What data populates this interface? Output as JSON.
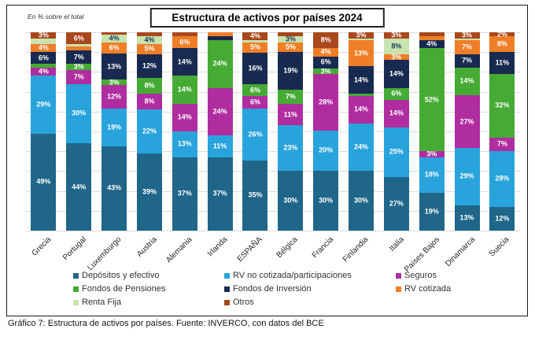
{
  "title": "Estructura de activos por países 2024",
  "note": "En % sobre el total",
  "caption": "Gráfico 7: Estructura de activos por países. Fuente: INVERCO, con datos del BCE",
  "colors": {
    "frame_border": "#1a1a1a",
    "gridline": "#dcdcdc",
    "label_on_dark": "#ffffff",
    "label_on_light": "#17365d"
  },
  "chart_data": {
    "type": "bar",
    "stacked": true,
    "unit": "% sobre el total",
    "ylim": [
      0,
      100
    ],
    "grid": true,
    "legend_position": "bottom",
    "categories": [
      "Grecia",
      "Portugal",
      "Luxemburgo",
      "Austria",
      "Alemania",
      "Irlanda",
      "ESPAÑA",
      "Bélgica",
      "Francia",
      "Finlandia",
      "Italia",
      "Países Bajos",
      "Dinamarca",
      "Suecia"
    ],
    "series": [
      {
        "name": "Depósitos y efectivo",
        "color": "#1F6688",
        "label_color": "#ffffff",
        "values": [
          49,
          44,
          43,
          39,
          37,
          37,
          35,
          30,
          30,
          30,
          27,
          19,
          13,
          12
        ],
        "labels": [
          "49%",
          "44%",
          "43%",
          "39%",
          "37%",
          "37%",
          "35%",
          "30%",
          "30%",
          "30%",
          "27%",
          "19%",
          "13%",
          "12%"
        ]
      },
      {
        "name": "RV no cotizada/participaciones",
        "color": "#29A3DC",
        "label_color": "#ffffff",
        "values": [
          29,
          30,
          19,
          22,
          13,
          11,
          26,
          23,
          20,
          24,
          25,
          18,
          29,
          28
        ],
        "labels": [
          "29%",
          "30%",
          "19%",
          "22%",
          "13%",
          "11%",
          "26%",
          "23%",
          "20%",
          "24%",
          "25%",
          "18%",
          "29%",
          "28%"
        ]
      },
      {
        "name": "Seguros",
        "color": "#B02DA0",
        "label_color": "#ffffff",
        "values": [
          4,
          7,
          12,
          8,
          14,
          24,
          6,
          11,
          28,
          14,
          14,
          3,
          27,
          7
        ],
        "labels": [
          "4%",
          "7%",
          "12%",
          "8%",
          "14%",
          "24%",
          "6%",
          "11%",
          "28%",
          "14%",
          "14%",
          "3%",
          "27%",
          "7%"
        ]
      },
      {
        "name": "Fondos de Pensiones",
        "color": "#46AB35",
        "label_color": "#ffffff",
        "values": [
          2,
          3,
          3,
          8,
          14,
          24,
          6,
          7,
          3,
          1,
          6,
          52,
          14,
          32
        ],
        "labels": [
          "",
          "3%",
          "3%",
          "8%",
          "14%",
          "24%",
          "6%",
          "7%",
          "3%",
          "",
          "6%",
          "52%",
          "14%",
          "32%"
        ]
      },
      {
        "name": "Fondos de Inversión",
        "color": "#182A50",
        "label_color": "#ffffff",
        "values": [
          6,
          7,
          13,
          12,
          14,
          2,
          16,
          19,
          6,
          14,
          14,
          4,
          7,
          11
        ],
        "labels": [
          "6%",
          "7%",
          "13%",
          "12%",
          "14%",
          "",
          "16%",
          "19%",
          "6%",
          "14%",
          "14%",
          "4%",
          "7%",
          "11%"
        ]
      },
      {
        "name": "RV cotizada",
        "color": "#F07E26",
        "label_color": "#ffffff",
        "values": [
          4,
          2,
          6,
          5,
          6,
          2,
          5,
          5,
          4,
          13,
          3,
          2,
          7,
          8
        ],
        "labels": [
          "4%",
          "",
          "6%",
          "5%",
          "6%",
          "",
          "5%",
          "5%",
          "4%",
          "13%",
          "3%",
          "",
          "7%",
          "8%"
        ]
      },
      {
        "name": "Renta Fija",
        "color": "#C9E3AE",
        "label_color": "#17365d",
        "values": [
          3,
          1,
          4,
          4,
          0,
          0,
          1,
          3,
          0,
          1,
          8,
          0,
          1,
          0
        ],
        "labels": [
          "",
          "",
          "4%",
          "4%",
          "",
          "",
          "",
          "3%",
          "",
          "",
          "8%",
          "",
          "",
          ""
        ]
      },
      {
        "name": "Otros",
        "color": "#A8481C",
        "label_color": "#ffffff",
        "values": [
          3,
          6,
          1,
          2,
          2,
          0,
          4,
          2,
          8,
          3,
          3,
          2,
          3,
          2
        ],
        "labels": [
          "3%",
          "6%",
          "",
          "",
          "",
          "",
          "4%",
          "",
          "8%",
          "3%",
          "3%",
          "",
          "3%",
          "2%"
        ]
      }
    ]
  }
}
